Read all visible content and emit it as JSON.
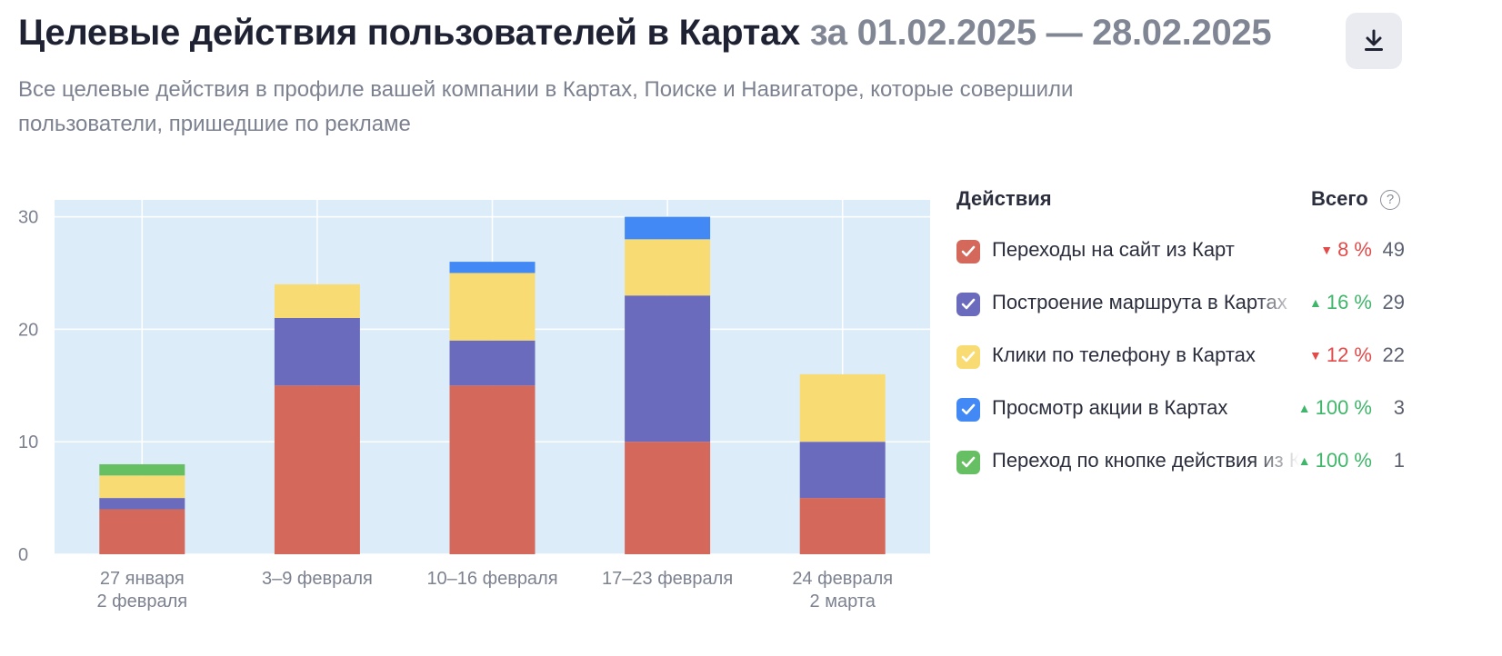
{
  "header": {
    "title_main": "Целевые действия пользователей в Картах",
    "title_period": "за 01.02.2025 — 28.02.2025",
    "subtitle": "Все целевые действия в профиле вашей компании в Картах, Поиске и Навигаторе, которые совершили пользователи, пришедшие по рекламе",
    "download_icon": "download-icon"
  },
  "legend": {
    "header_actions": "Действия",
    "header_total": "Всего",
    "help_label": "?",
    "items": [
      {
        "label": "Переходы на сайт из Карт",
        "change": "8 %",
        "direction": "down",
        "total": "49",
        "color": "#d4685b"
      },
      {
        "label": "Построение маршрута в Картах",
        "change": "16 %",
        "direction": "up",
        "total": "29",
        "color": "#6b6bbd"
      },
      {
        "label": "Клики по телефону в Картах",
        "change": "12 %",
        "direction": "down",
        "total": "22",
        "color": "#f8dc73"
      },
      {
        "label": "Просмотр акции в Картах",
        "change": "100 %",
        "direction": "up",
        "total": "3",
        "color": "#4389f5"
      },
      {
        "label": "Переход по кнопке действия из Карт",
        "change": "100 %",
        "direction": "up",
        "total": "1",
        "color": "#66bf62"
      }
    ]
  },
  "chart_data": {
    "type": "bar",
    "stacked": true,
    "categories": [
      [
        "27 января",
        "2 февраля"
      ],
      [
        "3–9 февраля"
      ],
      [
        "10–16 февраля"
      ],
      [
        "17–23 февраля"
      ],
      [
        "24 февраля",
        "2 марта"
      ]
    ],
    "series": [
      {
        "name": "Переходы на сайт из Карт",
        "color": "#d4685b",
        "values": [
          4,
          15,
          15,
          10,
          5
        ]
      },
      {
        "name": "Построение маршрута в Картах",
        "color": "#6b6bbd",
        "values": [
          1,
          6,
          4,
          13,
          5
        ]
      },
      {
        "name": "Клики по телефону в Картах",
        "color": "#f8dc73",
        "values": [
          2,
          3,
          6,
          5,
          6
        ]
      },
      {
        "name": "Просмотр акции в Картах",
        "color": "#4389f5",
        "values": [
          0,
          0,
          1,
          2,
          0
        ]
      },
      {
        "name": "Переход по кнопке действия из Карт",
        "color": "#66bf62",
        "values": [
          1,
          0,
          0,
          0,
          0
        ]
      }
    ],
    "yticks": [
      0,
      10,
      20,
      30
    ],
    "ylim": [
      0,
      31.5
    ],
    "grid": true,
    "plot_background": "#dcedf9"
  }
}
